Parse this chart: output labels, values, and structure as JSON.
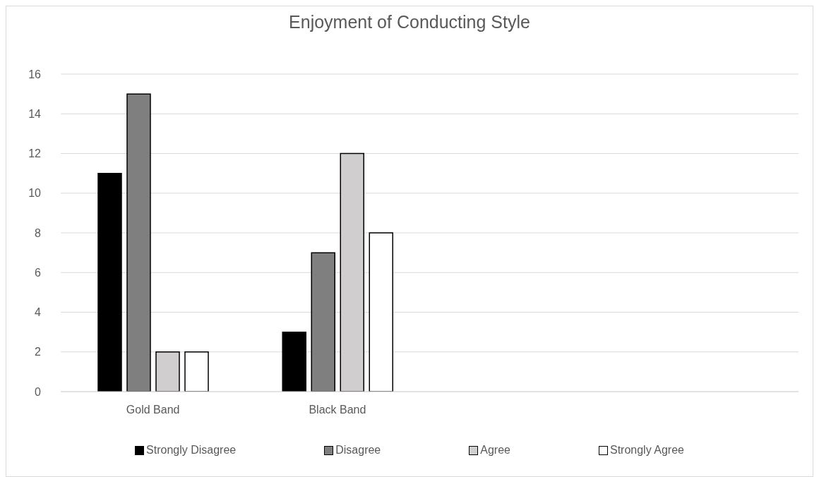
{
  "chart_data": {
    "type": "bar",
    "title": "Enjoyment of Conducting Style",
    "categories": [
      "Gold Band",
      "Black Band",
      null,
      null
    ],
    "series": [
      {
        "name": "Strongly Disagree",
        "color": "#000000",
        "values": [
          11,
          3,
          null,
          null
        ]
      },
      {
        "name": "Disagree",
        "color": "#7f7f7f",
        "values": [
          15,
          7,
          null,
          null
        ]
      },
      {
        "name": "Agree",
        "color": "#d0cece",
        "values": [
          2,
          12,
          null,
          null
        ]
      },
      {
        "name": "Strongly Agree",
        "color": "#ffffff",
        "values": [
          2,
          8,
          null,
          null
        ]
      }
    ],
    "ylim": [
      0,
      16
    ],
    "yticks": [
      0,
      2,
      4,
      6,
      8,
      10,
      12,
      14,
      16
    ],
    "grid": "y",
    "legend": "bottom"
  }
}
